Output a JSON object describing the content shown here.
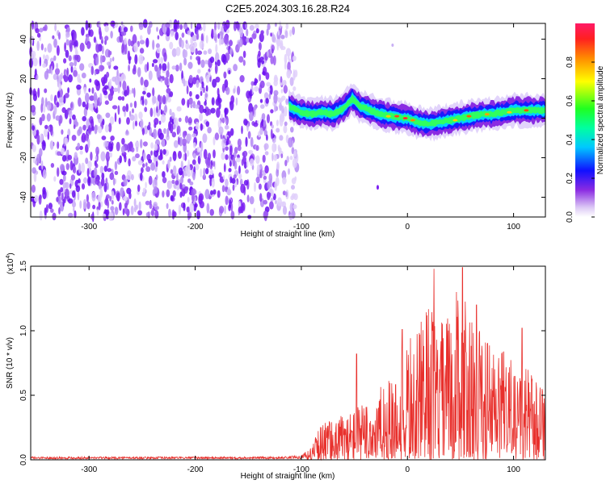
{
  "title": "C2E5.2024.303.16.28.R24",
  "chart_data": [
    {
      "type": "heatmap",
      "xlabel": "Height of straight line (km)",
      "ylabel": "Frequency (Hz)",
      "xlim": [
        -355,
        130
      ],
      "ylim": [
        -50,
        48
      ],
      "xticks": [
        -300,
        -200,
        -100,
        0,
        100
      ],
      "xtick_labels": [
        "-300",
        "-200",
        "-100",
        "0",
        "100"
      ],
      "yticks": [
        -40,
        -20,
        0,
        20,
        40
      ],
      "ytick_labels": [
        "-40",
        "-20",
        "0",
        "20",
        "40"
      ],
      "noise_region_x": [
        -355,
        -110
      ],
      "signal_band_center": [
        [
          -112,
          6
        ],
        [
          -100,
          3
        ],
        [
          -90,
          2
        ],
        [
          -80,
          3
        ],
        [
          -70,
          2
        ],
        [
          -60,
          5
        ],
        [
          -52,
          10
        ],
        [
          -45,
          6
        ],
        [
          -35,
          4
        ],
        [
          -25,
          2
        ],
        [
          -15,
          1
        ],
        [
          0,
          0
        ],
        [
          10,
          -2
        ],
        [
          20,
          -3
        ],
        [
          30,
          -2
        ],
        [
          40,
          -1
        ],
        [
          50,
          0
        ],
        [
          60,
          1
        ],
        [
          70,
          2
        ],
        [
          80,
          2
        ],
        [
          90,
          3
        ],
        [
          100,
          4
        ],
        [
          110,
          4
        ],
        [
          120,
          4
        ],
        [
          130,
          4
        ]
      ],
      "colorbar": {
        "label": "Normalized spectral amplitude",
        "range": [
          0.0,
          1.0
        ],
        "ticks": [
          0.0,
          0.2,
          0.4,
          0.6,
          0.8
        ],
        "tick_labels": [
          "0.0",
          "0.2",
          "0.4",
          "0.6",
          "0.8"
        ]
      }
    },
    {
      "type": "line",
      "xlabel": "Height of straight line (km)",
      "ylabel": "SNR (10 * v/v)",
      "y_multiplier": "(x10",
      "y_multiplier_exp": "4",
      "y_multiplier_close": ")",
      "xlim": [
        -355,
        130
      ],
      "ylim": [
        0.0,
        1.5
      ],
      "xticks": [
        -300,
        -200,
        -100,
        0,
        100
      ],
      "xtick_labels": [
        "-300",
        "-200",
        "-100",
        "0",
        "100"
      ],
      "yticks": [
        0.0,
        0.5,
        1.0,
        1.5
      ],
      "ytick_labels": [
        "0.0",
        "0.5",
        "1.0",
        "1.5"
      ],
      "color": "#e8302c",
      "envelope": [
        [
          -355,
          0.02
        ],
        [
          -120,
          0.02
        ],
        [
          -100,
          0.03
        ],
        [
          -95,
          0.06
        ],
        [
          -90,
          0.1
        ],
        [
          -85,
          0.22
        ],
        [
          -80,
          0.3
        ],
        [
          -70,
          0.32
        ],
        [
          -60,
          0.36
        ],
        [
          -50,
          0.42
        ],
        [
          -40,
          0.45
        ],
        [
          -30,
          0.55
        ],
        [
          -20,
          0.6
        ],
        [
          -10,
          0.7
        ],
        [
          0,
          1.0
        ],
        [
          10,
          1.0
        ],
        [
          20,
          1.25
        ],
        [
          30,
          1.05
        ],
        [
          40,
          1.2
        ],
        [
          50,
          1.45
        ],
        [
          60,
          1.1
        ],
        [
          70,
          1.0
        ],
        [
          80,
          0.95
        ],
        [
          90,
          0.85
        ],
        [
          100,
          0.8
        ],
        [
          110,
          0.75
        ],
        [
          120,
          0.65
        ],
        [
          130,
          0.6
        ]
      ],
      "peaks": [
        [
          -48,
          0.82
        ],
        [
          -5,
          1.01
        ],
        [
          25,
          1.48
        ],
        [
          52,
          1.49
        ],
        [
          65,
          1.2
        ],
        [
          108,
          1.02
        ]
      ]
    }
  ]
}
